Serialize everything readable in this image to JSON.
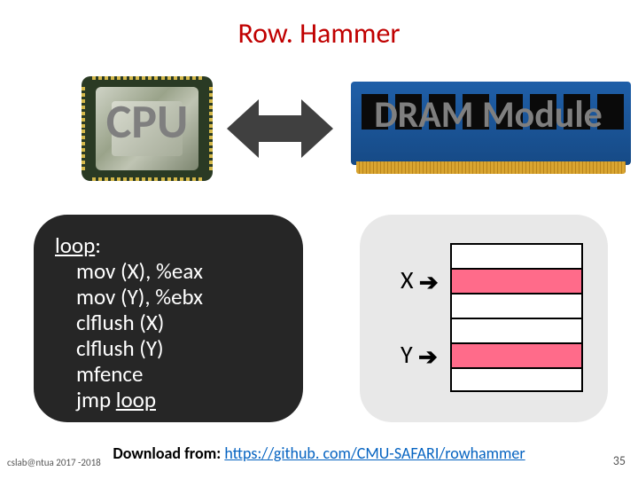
{
  "title": "Row. Hammer",
  "title_color": "#c00000",
  "cpu": {
    "label": "CPU",
    "label_color": "#7f7f7f"
  },
  "arrow": {
    "fill": "#404040",
    "width": 120,
    "height": 78
  },
  "dram": {
    "label": "DRAM Module",
    "label_color": "#7f7f7f",
    "pcb_color_top": "#1f5fa8",
    "pcb_color_bottom": "#164a86",
    "chip_count": 8
  },
  "code": {
    "bg": "#262626",
    "fg": "#ffffff",
    "lines": [
      {
        "text": "loop:",
        "underline_prefix": "loop",
        "indent": 0
      },
      {
        "text": "mov (X), %eax",
        "indent": 1
      },
      {
        "text": "mov (Y), %ebx",
        "indent": 1
      },
      {
        "text": "clflush (X)",
        "indent": 1
      },
      {
        "text": "clflush (Y)",
        "indent": 1
      },
      {
        "text": "mfence",
        "indent": 1
      },
      {
        "text": "jmp loop",
        "underline_suffix": "loop",
        "indent": 1,
        "prefix": "jmp "
      }
    ]
  },
  "memory": {
    "bg": "#e8e8e8",
    "row_count": 6,
    "highlight_rows": [
      1,
      4
    ],
    "highlight_color": "#ff6b8a",
    "labels": [
      {
        "text": "X",
        "row": 1
      },
      {
        "text": "Y",
        "row": 4
      }
    ],
    "arrow_glyph": "➔"
  },
  "footer": {
    "prefix": "Download from: ",
    "link_text": "https://github. com/CMU-SAFARI/rowhammer",
    "link_color": "#0563c1"
  },
  "slide_meta": {
    "bottom_left": "cslab@ntua 2017 -2018",
    "bottom_right": "35"
  }
}
